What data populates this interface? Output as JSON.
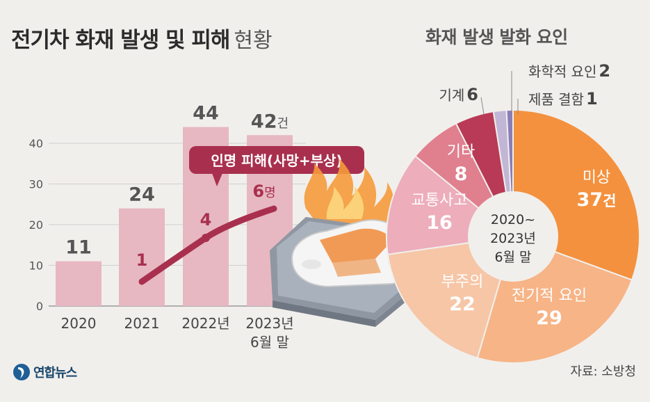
{
  "title": {
    "main": "전기차 화재 발생 및 피해",
    "sub": "현황"
  },
  "pie_title": "화재 발생 발화 요인",
  "source": "자료: 소방청",
  "logo_text": "연합뉴스",
  "icons": {
    "logo": "yonhap-logo-icon",
    "car": "burning-car-icon"
  },
  "callout": {
    "text": "인명 피해(사망+부상)"
  },
  "colors": {
    "bar": "#e7b8c1",
    "line": "#a8304e",
    "callout_bg": "#a8304e",
    "pie_orange": "#f4913e",
    "pie_light_orange": "#f7b487",
    "pie_peach": "#f6c6a6",
    "pie_pink": "#edadbb",
    "pie_rose": "#e07f8e",
    "pie_crimson": "#b83a56",
    "pie_lavender": "#c2b6d6",
    "pie_purple": "#8a7db8"
  },
  "chart_data": [
    {
      "type": "bar",
      "categories": [
        "2020",
        "2021",
        "2022년",
        "2023년\n6월 말"
      ],
      "values": [
        11,
        24,
        44,
        42
      ],
      "value_labels": [
        "11",
        "24",
        "44",
        "42건"
      ],
      "yticks": [
        0,
        10,
        20,
        30,
        40
      ],
      "ylim": [
        0,
        48
      ],
      "grid": true,
      "overlay_line": {
        "name": "인명 피해(사망+부상)",
        "points": [
          {
            "category": "2021",
            "value": 1,
            "label": "1"
          },
          {
            "category": "2022년",
            "value": 4,
            "label": "4"
          },
          {
            "category": "2023년\n6월 말",
            "value": 6,
            "label": "6명"
          }
        ]
      }
    },
    {
      "type": "pie",
      "title": "화재 발생 발화 요인",
      "center_label": "2020~\n2023년\n6월 말",
      "slices": [
        {
          "label": "미상",
          "value": 37,
          "value_label": "37건",
          "color": "#f4913e"
        },
        {
          "label": "전기적 요인",
          "value": 29,
          "value_label": "29",
          "color": "#f7b487"
        },
        {
          "label": "부주의",
          "value": 22,
          "value_label": "22",
          "color": "#f6c6a6"
        },
        {
          "label": "교통사고",
          "value": 16,
          "value_label": "16",
          "color": "#edadbb"
        },
        {
          "label": "기타",
          "value": 8,
          "value_label": "8",
          "color": "#e07f8e"
        },
        {
          "label": "기계",
          "value": 6,
          "value_label": "6",
          "color": "#b83a56"
        },
        {
          "label": "화학적 요인",
          "value": 2,
          "value_label": "2",
          "color": "#c2b6d6"
        },
        {
          "label": "제품 결함",
          "value": 1,
          "value_label": "1",
          "color": "#8a7db8"
        }
      ]
    }
  ]
}
